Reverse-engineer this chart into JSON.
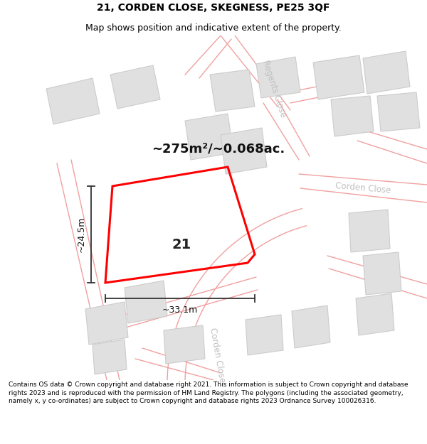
{
  "title": "21, CORDEN CLOSE, SKEGNESS, PE25 3QF",
  "subtitle": "Map shows position and indicative extent of the property.",
  "footer": "Contains OS data © Crown copyright and database right 2021. This information is subject to Crown copyright and database rights 2023 and is reproduced with the permission of HM Land Registry. The polygons (including the associated geometry, namely x, y co-ordinates) are subject to Crown copyright and database rights 2023 Ordnance Survey 100026316.",
  "map_bg": "#ffffff",
  "plot_color": "#ff0000",
  "road_color": "#f0a0a0",
  "road_outline_color": "#e8c0c0",
  "building_color": "#e0e0e0",
  "building_edge_color": "#cccccc",
  "road_label_color": "#c0c0c0",
  "dim_color": "#333333",
  "area_text": "~275m²/~0.068ac.",
  "width_label": "~33.1m",
  "height_label": "~24.5m",
  "plot_number": "21",
  "title_fontsize": 10,
  "subtitle_fontsize": 9,
  "area_fontsize": 13,
  "footer_fontsize": 6.5
}
